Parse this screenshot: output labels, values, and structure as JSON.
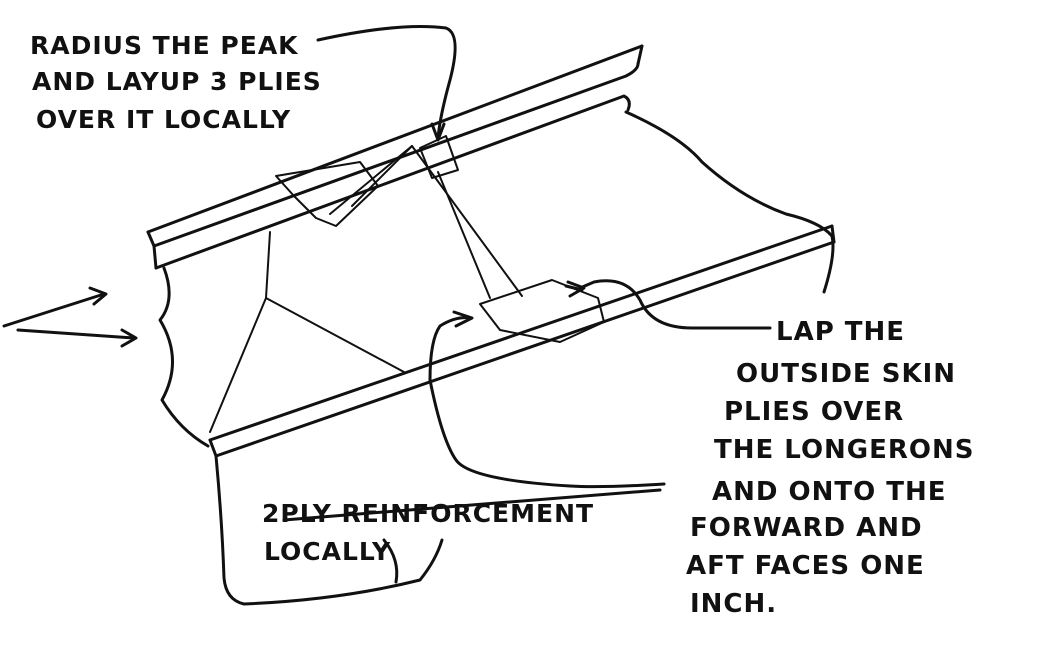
{
  "annotations": {
    "peak": {
      "lines": [
        "RADIUS THE PEAK",
        "AND LAYUP 3 PLIES",
        "OVER IT LOCALLY"
      ]
    },
    "lap": {
      "lines": [
        "LAP THE",
        "OUTSIDE SKIN",
        "PLIES OVER",
        "THE LONGERONS",
        "AND ONTO THE",
        "FORWARD AND",
        "AFT FACES ONE",
        "INCH."
      ]
    },
    "reinforcement": {
      "lines": [
        "2PLY REINFORCEMENT",
        "LOCALLY"
      ]
    }
  },
  "colors": {
    "ink": "#111111",
    "paper": "#ffffff"
  }
}
